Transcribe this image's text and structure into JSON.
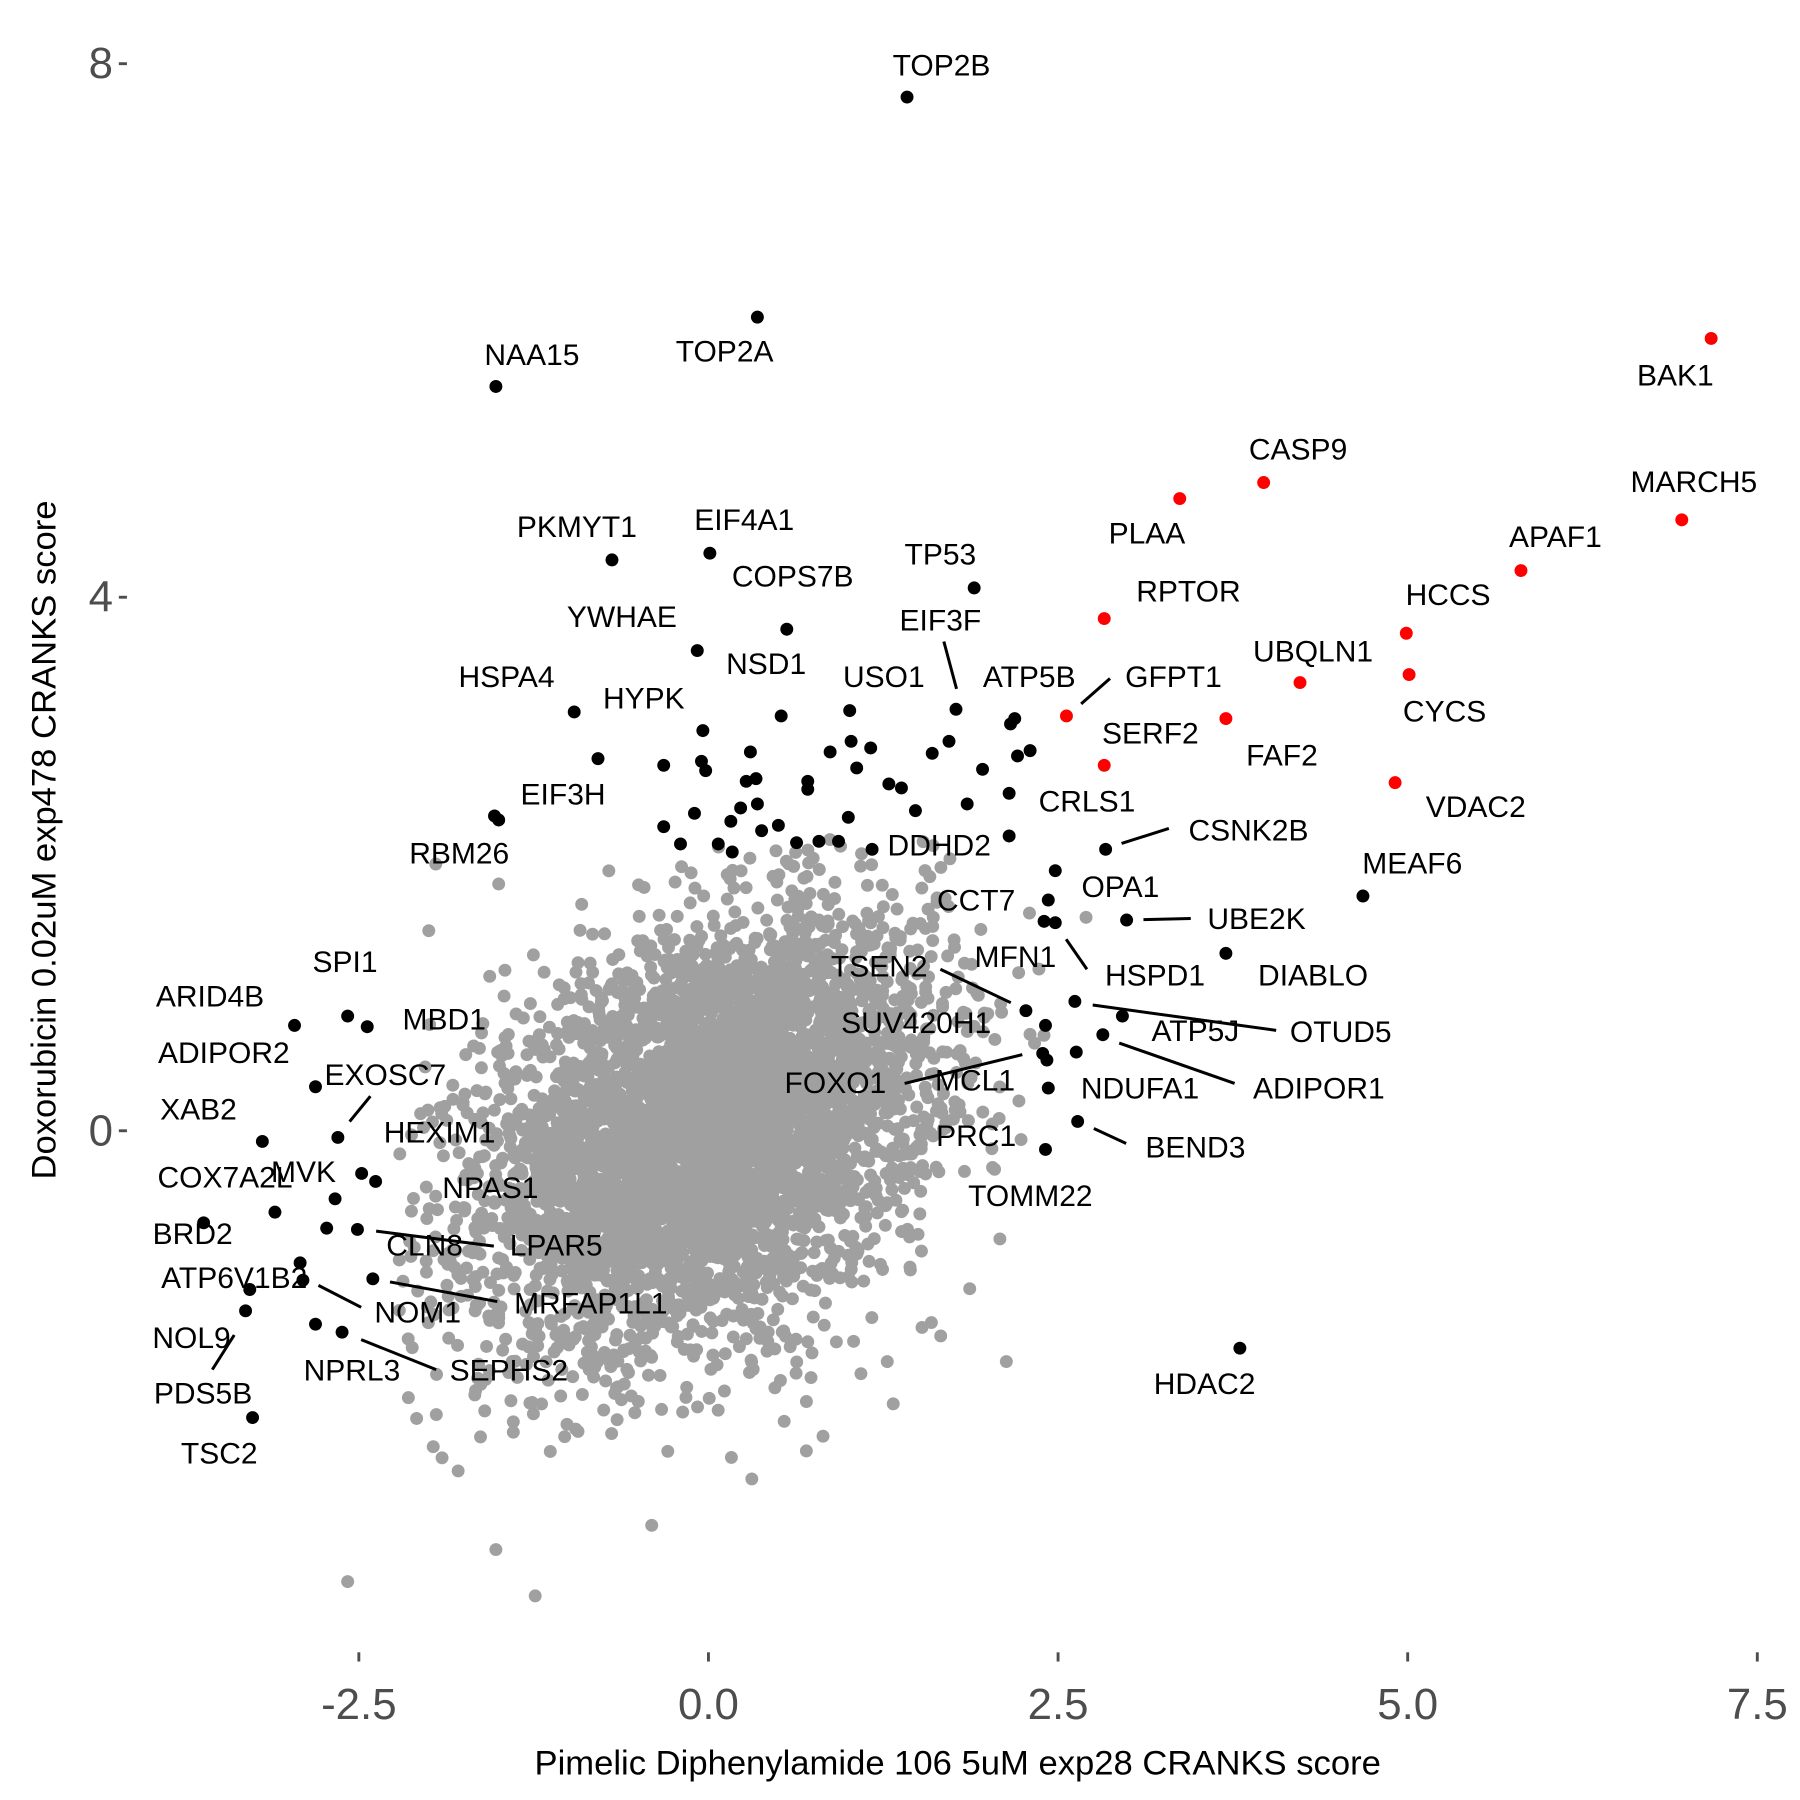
{
  "chart_data": {
    "type": "scatter",
    "title": "",
    "xlabel": "Pimelic Diphenylamide 106 5uM exp28 CRANKS score",
    "ylabel": "Doxorubicin 0.02uM exp478 CRANKS score",
    "xlim": [
      -3.8,
      7.6
    ],
    "ylim": [
      -3.9,
      8.3
    ],
    "x_ticks": [
      -2.5,
      0.0,
      2.5,
      5.0,
      7.5
    ],
    "x_tick_labels": [
      "-2.5",
      "0.0",
      "2.5",
      "5.0",
      "7.5"
    ],
    "y_ticks": [
      0,
      4,
      8
    ],
    "y_tick_labels": [
      "0",
      "4",
      "8"
    ],
    "grid": false,
    "legend": "none",
    "colors": {
      "background_points": "#a0a0a0",
      "hit": "#000000",
      "highlight": "#ff0000"
    },
    "background_cloud": {
      "n": 5000,
      "x_mean": 0.0,
      "y_mean": 0.0,
      "x_sd": 0.8,
      "y_sd": 0.78,
      "corr": 0.35
    },
    "background_outliers": [
      {
        "x": -1.52,
        "y": -3.14
      },
      {
        "x": -2.58,
        "y": -3.38
      },
      {
        "x": 2.13,
        "y": -1.73
      },
      {
        "x": 0.31,
        "y": -2.61
      },
      {
        "x": -1.79,
        "y": -2.55
      },
      {
        "x": -1.95,
        "y": 2.0
      },
      {
        "x": -2.0,
        "y": 1.5
      },
      {
        "x": -1.5,
        "y": 1.85
      },
      {
        "x": 2.7,
        "y": 1.6
      },
      {
        "x": 0.7,
        "y": -2.4
      },
      {
        "x": -1.6,
        "y": -2.1
      }
    ],
    "unlabeled_hits": [
      {
        "x": -0.04,
        "y": 3.0
      },
      {
        "x": 0.3,
        "y": 2.84
      },
      {
        "x": -0.05,
        "y": 2.77
      },
      {
        "x": -0.02,
        "y": 2.7
      },
      {
        "x": -0.32,
        "y": 2.74
      },
      {
        "x": 0.34,
        "y": 2.64
      },
      {
        "x": 0.27,
        "y": 2.62
      },
      {
        "x": 0.71,
        "y": 2.62
      },
      {
        "x": 0.71,
        "y": 2.56
      },
      {
        "x": 0.87,
        "y": 2.84
      },
      {
        "x": 1.02,
        "y": 2.92
      },
      {
        "x": 1.06,
        "y": 2.72
      },
      {
        "x": 1.16,
        "y": 2.87
      },
      {
        "x": 1.29,
        "y": 2.6
      },
      {
        "x": 1.38,
        "y": 2.57
      },
      {
        "x": 1.48,
        "y": 2.4
      },
      {
        "x": 1.6,
        "y": 2.83
      },
      {
        "x": 1.72,
        "y": 2.92
      },
      {
        "x": 1.85,
        "y": 2.45
      },
      {
        "x": 1.96,
        "y": 2.71
      },
      {
        "x": 2.16,
        "y": 3.05
      },
      {
        "x": 2.21,
        "y": 2.81
      },
      {
        "x": 2.3,
        "y": 2.85
      },
      {
        "x": 2.15,
        "y": 2.21
      },
      {
        "x": -0.32,
        "y": 2.28
      },
      {
        "x": -0.1,
        "y": 2.38
      },
      {
        "x": 0.16,
        "y": 2.32
      },
      {
        "x": 0.38,
        "y": 2.25
      },
      {
        "x": 0.5,
        "y": 2.29
      },
      {
        "x": -0.2,
        "y": 2.15
      },
      {
        "x": 0.07,
        "y": 2.15
      },
      {
        "x": 0.17,
        "y": 2.09
      },
      {
        "x": 0.63,
        "y": 2.16
      },
      {
        "x": 0.79,
        "y": 2.17
      },
      {
        "x": 0.93,
        "y": 2.17
      },
      {
        "x": 1.0,
        "y": 2.35
      },
      {
        "x": 0.23,
        "y": 2.42
      },
      {
        "x": 0.35,
        "y": 2.45
      }
    ],
    "labeled": [
      {
        "name": "TOP2B",
        "x": 1.42,
        "y": 7.75,
        "color": "#000000"
      },
      {
        "name": "TOP2A",
        "x": 0.35,
        "y": 6.1,
        "color": "#000000"
      },
      {
        "name": "NAA15",
        "x": -1.52,
        "y": 5.58,
        "color": "#000000"
      },
      {
        "name": "BAK1",
        "x": 7.17,
        "y": 5.94,
        "color": "#ff0000"
      },
      {
        "name": "CASP9",
        "x": 3.97,
        "y": 4.86,
        "color": "#ff0000"
      },
      {
        "name": "PLAA",
        "x": 3.37,
        "y": 4.74,
        "color": "#ff0000"
      },
      {
        "name": "MARCH5",
        "x": 6.96,
        "y": 4.58,
        "color": "#ff0000"
      },
      {
        "name": "APAF1",
        "x": 5.81,
        "y": 4.2,
        "color": "#ff0000"
      },
      {
        "name": "PKMYT1",
        "x": -0.69,
        "y": 4.28,
        "color": "#000000"
      },
      {
        "name": "EIF4A1",
        "x": 0.01,
        "y": 4.33,
        "color": "#000000"
      },
      {
        "name": "TP53",
        "x": 1.9,
        "y": 4.07,
        "color": "#000000"
      },
      {
        "name": "COPS7B",
        "x": 0.56,
        "y": 3.76,
        "color": "#000000"
      },
      {
        "name": "RPTOR",
        "x": 2.83,
        "y": 3.84,
        "color": "#ff0000"
      },
      {
        "name": "HCCS",
        "x": 4.99,
        "y": 3.73,
        "color": "#ff0000"
      },
      {
        "name": "CYCS",
        "x": 5.01,
        "y": 3.42,
        "color": "#ff0000"
      },
      {
        "name": "UBQLN1",
        "x": 4.23,
        "y": 3.36,
        "color": "#ff0000"
      },
      {
        "name": "YWHAE",
        "x": -0.08,
        "y": 3.6,
        "color": "#000000"
      },
      {
        "name": "NSD1",
        "x": 0.52,
        "y": 3.11,
        "color": "#000000"
      },
      {
        "name": "HSPA4",
        "x": -0.96,
        "y": 3.14,
        "color": "#000000"
      },
      {
        "name": "HYPK",
        "x": -0.79,
        "y": 2.79,
        "color": "#000000"
      },
      {
        "name": "EIF3F",
        "x": 1.77,
        "y": 3.16,
        "color": "#000000"
      },
      {
        "name": "USO1",
        "x": 1.01,
        "y": 3.15,
        "color": "#000000"
      },
      {
        "name": "ATP5B",
        "x": 2.19,
        "y": 3.09,
        "color": "#000000"
      },
      {
        "name": "GFPT1",
        "x": 2.56,
        "y": 3.11,
        "color": "#ff0000"
      },
      {
        "name": "FAF2",
        "x": 3.7,
        "y": 3.09,
        "color": "#ff0000"
      },
      {
        "name": "SERF2",
        "x": 2.83,
        "y": 2.74,
        "color": "#ff0000"
      },
      {
        "name": "VDAC2",
        "x": 4.91,
        "y": 2.61,
        "color": "#ff0000"
      },
      {
        "name": "EIF3H",
        "x": -1.53,
        "y": 2.36,
        "color": "#000000"
      },
      {
        "name": "RBM26",
        "x": -1.5,
        "y": 2.33,
        "color": "#000000"
      },
      {
        "name": "CRLS1",
        "x": 2.15,
        "y": 2.53,
        "color": "#000000"
      },
      {
        "name": "DDHD2",
        "x": 1.17,
        "y": 2.11,
        "color": "#000000"
      },
      {
        "name": "CSNK2B",
        "x": 2.84,
        "y": 2.11,
        "color": "#000000"
      },
      {
        "name": "MEAF6",
        "x": 4.68,
        "y": 1.76,
        "color": "#000000"
      },
      {
        "name": "OPA1",
        "x": 2.48,
        "y": 1.95,
        "color": "#000000"
      },
      {
        "name": "CCT7",
        "x": 2.43,
        "y": 1.73,
        "color": "#000000"
      },
      {
        "name": "UBE2K",
        "x": 2.99,
        "y": 1.58,
        "color": "#000000"
      },
      {
        "name": "HSPD1",
        "x": 2.48,
        "y": 1.56,
        "color": "#000000"
      },
      {
        "name": "MFN1",
        "x": 2.4,
        "y": 1.57,
        "color": "#000000"
      },
      {
        "name": "DIABLO",
        "x": 3.7,
        "y": 1.33,
        "color": "#000000"
      },
      {
        "name": "TSEN2",
        "x": 2.27,
        "y": 0.9,
        "color": "#000000"
      },
      {
        "name": "OTUD5",
        "x": 2.62,
        "y": 0.97,
        "color": "#000000"
      },
      {
        "name": "SUV420H1",
        "x": 2.41,
        "y": 0.79,
        "color": "#000000"
      },
      {
        "name": "ATP5J",
        "x": 2.96,
        "y": 0.86,
        "color": "#000000"
      },
      {
        "name": "ADIPOR1",
        "x": 2.82,
        "y": 0.72,
        "color": "#000000"
      },
      {
        "name": "FOXO1",
        "x": 2.39,
        "y": 0.58,
        "color": "#000000"
      },
      {
        "name": "MCL1",
        "x": 2.42,
        "y": 0.53,
        "color": "#000000"
      },
      {
        "name": "NDUFA1",
        "x": 2.63,
        "y": 0.59,
        "color": "#000000"
      },
      {
        "name": "TOMM22",
        "x": 2.43,
        "y": 0.32,
        "color": "#000000"
      },
      {
        "name": "BEND3",
        "x": 2.64,
        "y": 0.07,
        "color": "#000000"
      },
      {
        "name": "PRC1",
        "x": 2.41,
        "y": -0.14,
        "color": "#000000"
      },
      {
        "name": "HDAC2",
        "x": 3.8,
        "y": -1.63,
        "color": "#000000"
      },
      {
        "name": "SPI1",
        "x": -2.58,
        "y": 0.86,
        "color": "#000000"
      },
      {
        "name": "ARID4B",
        "x": -2.96,
        "y": 0.79,
        "color": "#000000"
      },
      {
        "name": "MBD1",
        "x": -2.44,
        "y": 0.78,
        "color": "#000000"
      },
      {
        "name": "ADIPOR2",
        "x": -2.81,
        "y": 0.33,
        "color": "#000000"
      },
      {
        "name": "EXOSC7",
        "x": -2.65,
        "y": -0.05,
        "color": "#000000"
      },
      {
        "name": "XAB2",
        "x": -3.19,
        "y": -0.08,
        "color": "#000000"
      },
      {
        "name": "HEXIM1",
        "x": -2.48,
        "y": -0.32,
        "color": "#000000"
      },
      {
        "name": "NPAS1",
        "x": -2.38,
        "y": -0.38,
        "color": "#000000"
      },
      {
        "name": "COX7A2L",
        "x": -3.1,
        "y": -0.61,
        "color": "#000000"
      },
      {
        "name": "MVK",
        "x": -2.67,
        "y": -0.51,
        "color": "#000000"
      },
      {
        "name": "BRD2",
        "x": -3.61,
        "y": -0.69,
        "color": "#000000"
      },
      {
        "name": "CLN8",
        "x": -2.73,
        "y": -0.73,
        "color": "#000000"
      },
      {
        "name": "LPAR5",
        "x": -2.51,
        "y": -0.74,
        "color": "#000000"
      },
      {
        "name": "ATP6V1B2",
        "x": -2.92,
        "y": -0.99,
        "color": "#000000"
      },
      {
        "name": "NOM1",
        "x": -2.9,
        "y": -1.12,
        "color": "#000000"
      },
      {
        "name": "MRFAP1L1",
        "x": -2.4,
        "y": -1.11,
        "color": "#000000"
      },
      {
        "name": "NOL9",
        "x": -3.28,
        "y": -1.19,
        "color": "#000000"
      },
      {
        "name": "PDS5B",
        "x": -3.31,
        "y": -1.35,
        "color": "#000000"
      },
      {
        "name": "NPRL3",
        "x": -2.81,
        "y": -1.45,
        "color": "#000000"
      },
      {
        "name": "SEPHS2",
        "x": -2.62,
        "y": -1.51,
        "color": "#000000"
      },
      {
        "name": "TSC2",
        "x": -3.26,
        "y": -2.15,
        "color": "#000000"
      }
    ]
  }
}
